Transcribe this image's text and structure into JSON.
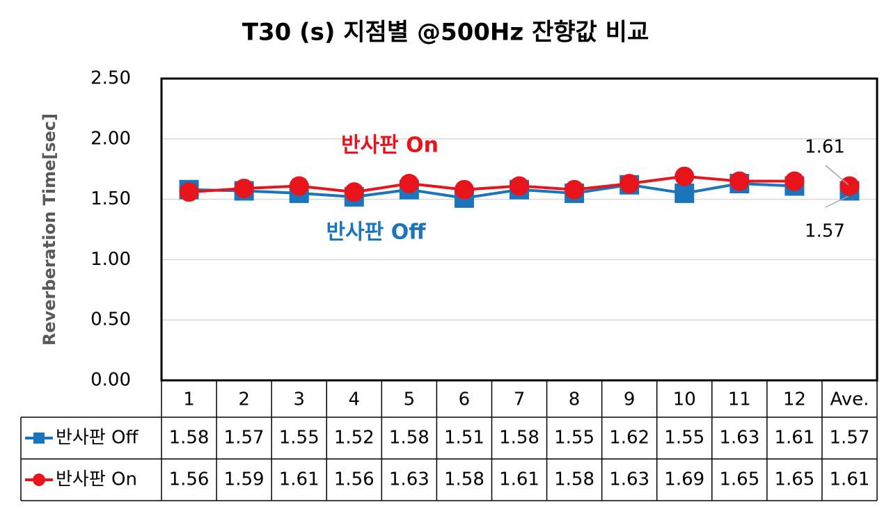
{
  "chart_data": {
    "type": "line",
    "title": "T30 (s) 지점별 @500Hz 잔향값 비교",
    "y_label": "Reverberation Time[sec]",
    "categories": [
      "1",
      "2",
      "3",
      "4",
      "5",
      "6",
      "7",
      "8",
      "9",
      "10",
      "11",
      "12",
      "Ave."
    ],
    "series": [
      {
        "name": "반사판 Off",
        "color": "#1a75bc",
        "marker": "square",
        "values": [
          1.58,
          1.57,
          1.55,
          1.52,
          1.58,
          1.51,
          1.58,
          1.55,
          1.62,
          1.55,
          1.63,
          1.61,
          1.57
        ]
      },
      {
        "name": "반사판 On",
        "color": "#e8141c",
        "marker": "circle",
        "values": [
          1.56,
          1.59,
          1.61,
          1.56,
          1.63,
          1.58,
          1.61,
          1.58,
          1.63,
          1.69,
          1.65,
          1.65,
          1.61
        ]
      }
    ],
    "ylim": [
      0,
      2.5
    ],
    "yticks": [
      {
        "value": 0,
        "label": "0.00"
      },
      {
        "value": 0.5,
        "label": "0.50"
      },
      {
        "value": 1,
        "label": "1.00"
      },
      {
        "value": 1.5,
        "label": "1.50"
      },
      {
        "value": 2,
        "label": "2.00"
      },
      {
        "value": 2.5,
        "label": "2.50"
      }
    ],
    "grid": true,
    "data_table": true
  }
}
